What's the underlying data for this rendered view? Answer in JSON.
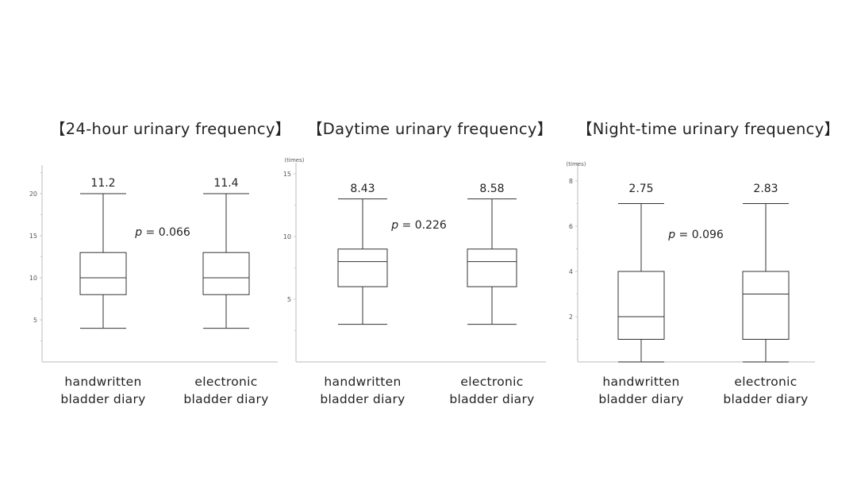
{
  "chart_data": [
    {
      "type": "box",
      "title": "【24-hour urinary frequency】",
      "ylabel": "",
      "ylim": [
        0,
        23
      ],
      "yticks": [
        5,
        10,
        15,
        20
      ],
      "categories": [
        "handwritten bladder diary",
        "electronic bladder diary"
      ],
      "category_lines": [
        [
          "handwritten",
          "bladder diary"
        ],
        [
          "electronic",
          "bladder diary"
        ]
      ],
      "boxes": [
        {
          "min": 4,
          "q1": 8,
          "median": 10,
          "q3": 13,
          "max": 20,
          "mean_label": "11.2"
        },
        {
          "min": 4,
          "q1": 8,
          "median": 10,
          "q3": 13,
          "max": 20,
          "mean_label": "11.4"
        }
      ],
      "p_value": "0.066",
      "p_prefix": "p",
      "p_eq": " = "
    },
    {
      "type": "box",
      "title": "【Daytime urinary frequency】",
      "ylabel": "(times)",
      "ylim": [
        0,
        15
      ],
      "yticks": [
        5,
        10,
        15
      ],
      "categories": [
        "handwritten bladder diary",
        "electronic bladder diary"
      ],
      "category_lines": [
        [
          "handwritten",
          "bladder diary"
        ],
        [
          "electronic",
          "bladder diary"
        ]
      ],
      "boxes": [
        {
          "min": 3,
          "q1": 6,
          "median": 8,
          "q3": 9,
          "max": 13,
          "mean_label": "8.43"
        },
        {
          "min": 3,
          "q1": 6,
          "median": 8,
          "q3": 9,
          "max": 13,
          "mean_label": "8.58"
        }
      ],
      "p_value": "0.226",
      "p_prefix": "p",
      "p_eq": " = "
    },
    {
      "type": "box",
      "title": "【Night-time urinary frequency】",
      "ylabel": "(times)",
      "ylim": [
        0,
        8
      ],
      "yticks": [
        2,
        4,
        6,
        8
      ],
      "categories": [
        "handwritten bladder diary",
        "electronic bladder diary"
      ],
      "category_lines": [
        [
          "handwritten",
          "bladder diary"
        ],
        [
          "electronic",
          "bladder diary"
        ]
      ],
      "boxes": [
        {
          "min": 0,
          "q1": 1,
          "median": 2,
          "q3": 4,
          "max": 7,
          "mean_label": "2.75"
        },
        {
          "min": 0,
          "q1": 1,
          "median": 3,
          "q3": 4,
          "max": 7,
          "mean_label": "2.83"
        }
      ],
      "p_value": "0.096",
      "p_prefix": "p",
      "p_eq": " = "
    }
  ]
}
